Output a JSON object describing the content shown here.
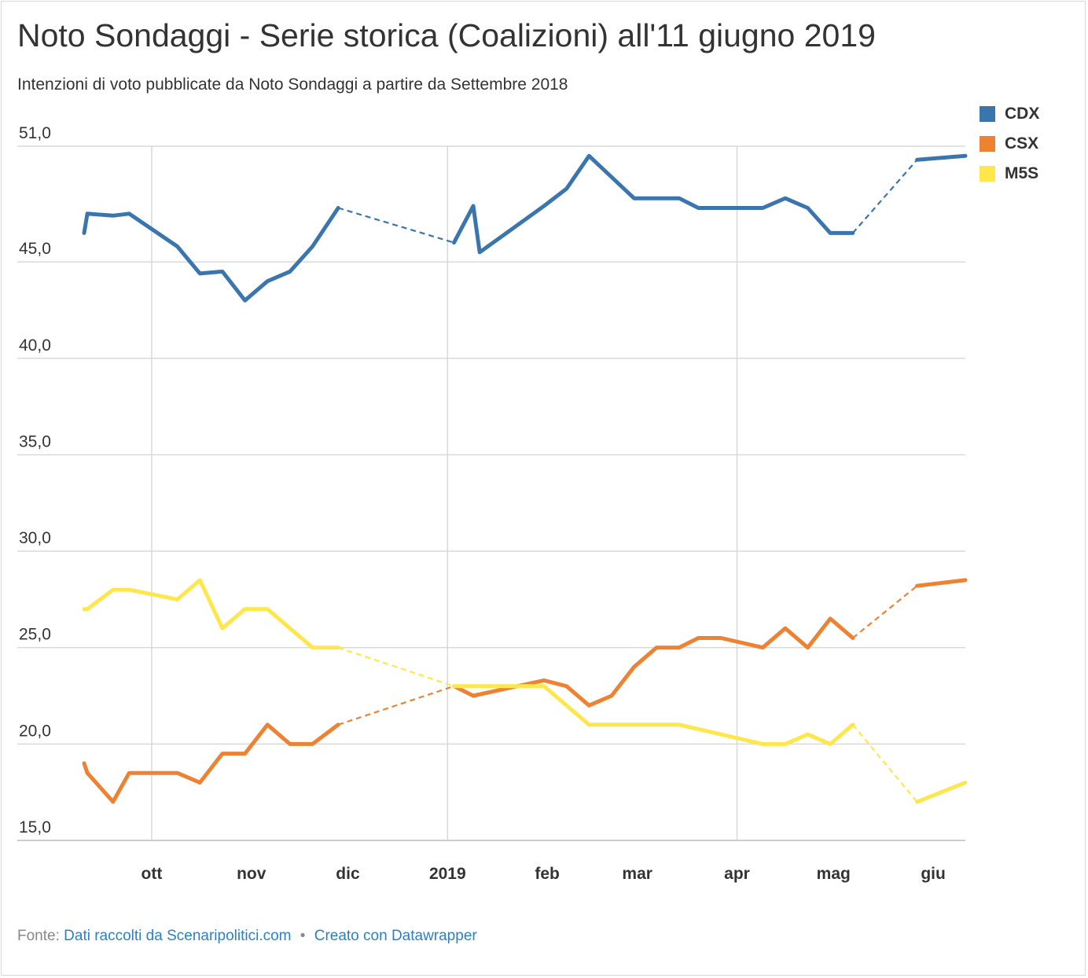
{
  "title": "Noto Sondaggi - Serie storica (Coalizioni) all'11 giugno 2019",
  "subtitle": "Intenzioni di voto pubblicate da Noto Sondaggi a partire da Settembre 2018",
  "footer": {
    "prefix": "Fonte:",
    "source_link": "Dati raccolti da Scenaripolitici.com",
    "separator": "•",
    "made_with": "Creato con Datawrapper"
  },
  "colors": {
    "CDX": "#3a75ae",
    "CSX": "#ed8233",
    "M5S": "#fde74c",
    "grid": "#d9d9d9",
    "link": "#2f7fc1"
  },
  "legend": [
    {
      "name": "CDX",
      "color": "#3a75ae"
    },
    {
      "name": "CSX",
      "color": "#ed8233"
    },
    {
      "name": "M5S",
      "color": "#fde74c"
    }
  ],
  "chart_data": {
    "type": "line",
    "title": "Noto Sondaggi - Serie storica (Coalizioni) all'11 giugno 2019",
    "xlabel": "",
    "ylabel": "",
    "xlim": [
      "2018-09-10",
      "2019-06-11"
    ],
    "ylim": [
      15,
      51
    ],
    "y_ticks": [
      {
        "value": 51,
        "label": "51,0"
      },
      {
        "value": 45,
        "label": "45,0"
      },
      {
        "value": 40,
        "label": "40,0"
      },
      {
        "value": 35,
        "label": "35,0"
      },
      {
        "value": 30,
        "label": "30,0"
      },
      {
        "value": 25,
        "label": "25,0"
      },
      {
        "value": 20,
        "label": "20,0"
      },
      {
        "value": 15,
        "label": "15,0"
      }
    ],
    "x_ticks": [
      {
        "date": "2018-10-01",
        "label": "ott"
      },
      {
        "date": "2018-11-01",
        "label": "nov"
      },
      {
        "date": "2018-12-01",
        "label": "dic"
      },
      {
        "date": "2019-01-01",
        "label": "2019"
      },
      {
        "date": "2019-02-01",
        "label": "feb"
      },
      {
        "date": "2019-03-01",
        "label": "mar"
      },
      {
        "date": "2019-04-01",
        "label": "apr"
      },
      {
        "date": "2019-05-01",
        "label": "mag"
      },
      {
        "date": "2019-06-01",
        "label": "giu"
      }
    ],
    "grid": true,
    "vertical_grid_dates": [
      "2018-10-01",
      "2019-01-01",
      "2019-04-01"
    ],
    "legend_position": "top-right",
    "gaps": [
      {
        "from": "2018-11-28",
        "to": "2019-01-03",
        "style": "dashed"
      },
      {
        "from": "2019-05-07",
        "to": "2019-05-27",
        "style": "dashed"
      }
    ],
    "series": [
      {
        "name": "CDX",
        "points": [
          [
            "2018-09-10",
            46.5
          ],
          [
            "2018-09-11",
            47.5
          ],
          [
            "2018-09-19",
            47.4
          ],
          [
            "2018-09-24",
            47.5
          ],
          [
            "2018-10-09",
            45.8
          ],
          [
            "2018-10-16",
            44.4
          ],
          [
            "2018-10-23",
            44.5
          ],
          [
            "2018-10-30",
            43.0
          ],
          [
            "2018-11-06",
            44.0
          ],
          [
            "2018-11-13",
            44.5
          ],
          [
            "2018-11-20",
            45.8
          ],
          [
            "2018-11-28",
            47.8
          ],
          [
            "2019-01-03",
            46.0
          ],
          [
            "2019-01-09",
            47.9
          ],
          [
            "2019-01-11",
            45.5
          ],
          [
            "2019-01-31",
            47.9
          ],
          [
            "2019-02-07",
            48.8
          ],
          [
            "2019-02-14",
            50.5
          ],
          [
            "2019-02-28",
            48.3
          ],
          [
            "2019-03-14",
            48.3
          ],
          [
            "2019-03-20",
            47.8
          ],
          [
            "2019-04-09",
            47.8
          ],
          [
            "2019-04-16",
            48.3
          ],
          [
            "2019-04-23",
            47.8
          ],
          [
            "2019-04-30",
            46.5
          ],
          [
            "2019-05-07",
            46.5
          ],
          [
            "2019-05-27",
            50.3
          ],
          [
            "2019-06-11",
            50.5
          ]
        ]
      },
      {
        "name": "CSX",
        "points": [
          [
            "2018-09-10",
            19.0
          ],
          [
            "2018-09-11",
            18.5
          ],
          [
            "2018-09-19",
            17.0
          ],
          [
            "2018-09-24",
            18.5
          ],
          [
            "2018-10-09",
            18.5
          ],
          [
            "2018-10-16",
            18.0
          ],
          [
            "2018-10-23",
            19.5
          ],
          [
            "2018-10-30",
            19.5
          ],
          [
            "2018-11-06",
            21.0
          ],
          [
            "2018-11-13",
            20.0
          ],
          [
            "2018-11-20",
            20.0
          ],
          [
            "2018-11-28",
            21.0
          ],
          [
            "2019-01-03",
            23.0
          ],
          [
            "2019-01-09",
            22.5
          ],
          [
            "2019-01-31",
            23.3
          ],
          [
            "2019-02-07",
            23.0
          ],
          [
            "2019-02-14",
            22.0
          ],
          [
            "2019-02-21",
            22.5
          ],
          [
            "2019-02-28",
            24.0
          ],
          [
            "2019-03-07",
            25.0
          ],
          [
            "2019-03-14",
            25.0
          ],
          [
            "2019-03-20",
            25.5
          ],
          [
            "2019-03-27",
            25.5
          ],
          [
            "2019-04-09",
            25.0
          ],
          [
            "2019-04-16",
            26.0
          ],
          [
            "2019-04-23",
            25.0
          ],
          [
            "2019-04-30",
            26.5
          ],
          [
            "2019-05-07",
            25.5
          ],
          [
            "2019-05-27",
            28.2
          ],
          [
            "2019-06-11",
            28.5
          ]
        ]
      },
      {
        "name": "M5S",
        "points": [
          [
            "2018-09-10",
            27.0
          ],
          [
            "2018-09-11",
            27.0
          ],
          [
            "2018-09-19",
            28.0
          ],
          [
            "2018-09-24",
            28.0
          ],
          [
            "2018-10-09",
            27.5
          ],
          [
            "2018-10-16",
            28.5
          ],
          [
            "2018-10-23",
            26.0
          ],
          [
            "2018-10-30",
            27.0
          ],
          [
            "2018-11-06",
            27.0
          ],
          [
            "2018-11-20",
            25.0
          ],
          [
            "2018-11-28",
            25.0
          ],
          [
            "2019-01-03",
            23.0
          ],
          [
            "2019-01-31",
            23.0
          ],
          [
            "2019-02-14",
            21.0
          ],
          [
            "2019-03-14",
            21.0
          ],
          [
            "2019-04-09",
            20.0
          ],
          [
            "2019-04-16",
            20.0
          ],
          [
            "2019-04-23",
            20.5
          ],
          [
            "2019-04-30",
            20.0
          ],
          [
            "2019-05-07",
            21.0
          ],
          [
            "2019-05-27",
            17.0
          ],
          [
            "2019-06-11",
            18.0
          ]
        ]
      }
    ]
  }
}
